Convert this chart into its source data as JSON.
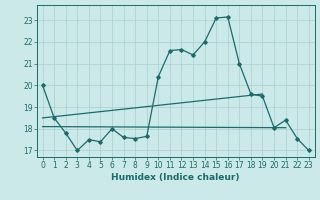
{
  "title": "",
  "xlabel": "Humidex (Indice chaleur)",
  "xlim": [
    -0.5,
    23.5
  ],
  "ylim": [
    16.7,
    23.7
  ],
  "yticks": [
    17,
    18,
    19,
    20,
    21,
    22,
    23
  ],
  "xticks": [
    0,
    1,
    2,
    3,
    4,
    5,
    6,
    7,
    8,
    9,
    10,
    11,
    12,
    13,
    14,
    15,
    16,
    17,
    18,
    19,
    20,
    21,
    22,
    23
  ],
  "bg_color": "#cce9e9",
  "line_color": "#1a6b6b",
  "grid_color": "#aacfcf",
  "line1_x": [
    0,
    1,
    2,
    3,
    4,
    5,
    6,
    7,
    8,
    9,
    10,
    11,
    12,
    13,
    14,
    15,
    16,
    17,
    18,
    19,
    20,
    21,
    22,
    23
  ],
  "line1_y": [
    20.0,
    18.5,
    17.8,
    17.0,
    17.5,
    17.4,
    18.0,
    17.6,
    17.55,
    17.65,
    20.4,
    21.6,
    21.65,
    21.4,
    22.0,
    23.1,
    23.15,
    21.0,
    19.6,
    19.5,
    18.05,
    18.4,
    17.55,
    17.0
  ],
  "line2_x": [
    0,
    21
  ],
  "line2_y": [
    18.1,
    18.05
  ],
  "line3_x": [
    0,
    19
  ],
  "line3_y": [
    18.5,
    19.6
  ]
}
